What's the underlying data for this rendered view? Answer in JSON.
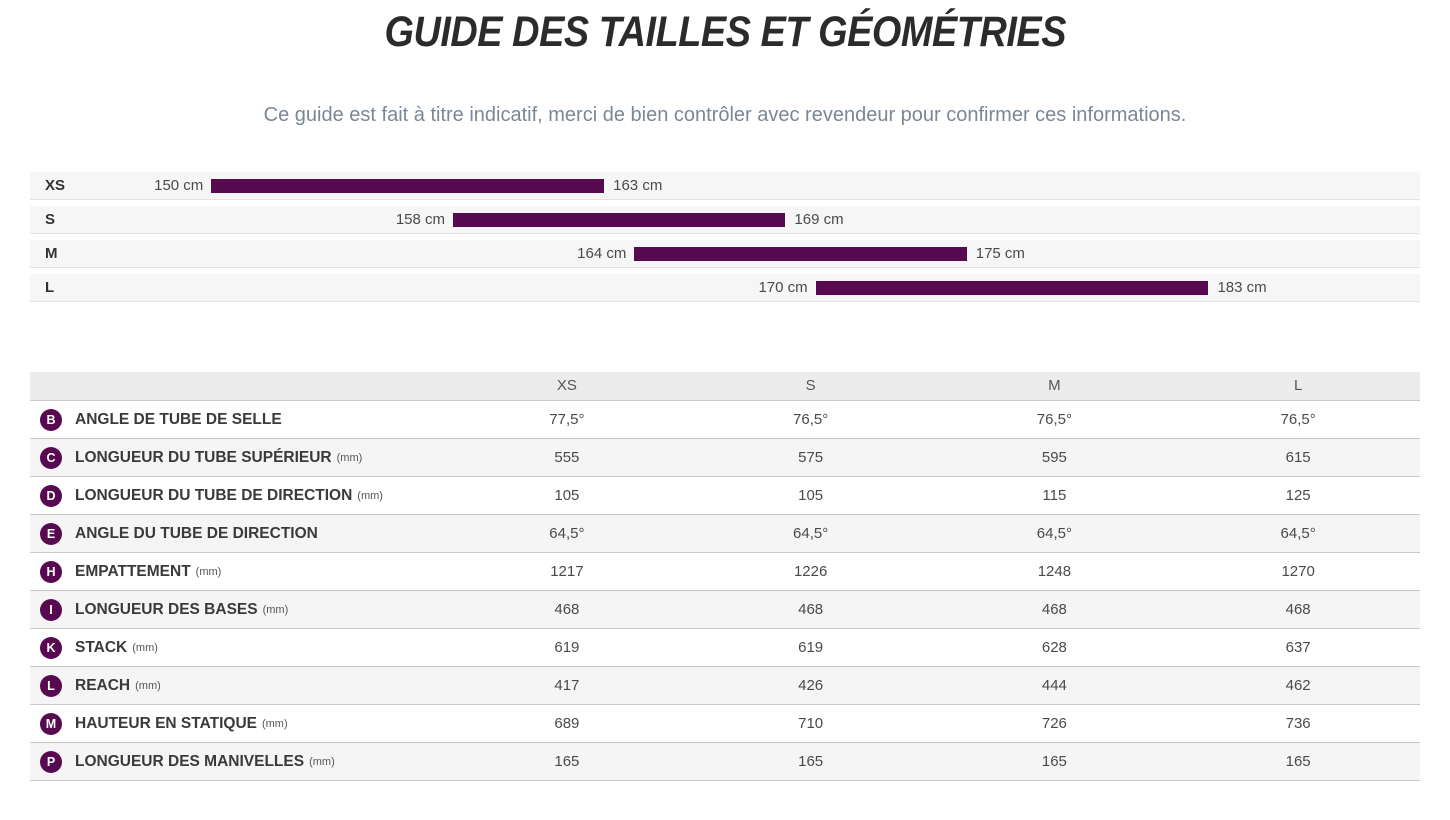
{
  "page": {
    "title": "GUIDE DES TAILLES ET GÉOMÉTRIES",
    "subtitle": "Ce guide est fait à titre indicatif, merci de bien contrôler avec revendeur pour confirmer ces informations."
  },
  "colors": {
    "accent_purple": "#570A50",
    "band_bg": "#F6F6F6",
    "table_header_bg": "#ECECEC",
    "row_alt_bg": "#F5F5F5",
    "row_border": "#C9C9C9",
    "title_text": "#2B2B2B",
    "subtitle_text": "#7B8794",
    "label_text": "#3A3A3A",
    "value_text": "#4A4A4A"
  },
  "chart_data": [
    {
      "type": "bar",
      "subtype": "horizontal-range",
      "categories": [
        "XS",
        "S",
        "M",
        "L"
      ],
      "series": [
        {
          "name": "rider-height-range-cm",
          "values": [
            [
              150,
              163
            ],
            [
              158,
              169
            ],
            [
              164,
              175
            ],
            [
              170,
              183
            ]
          ]
        }
      ],
      "value_labels": [
        [
          "150 cm",
          "163 cm"
        ],
        [
          "158 cm",
          "169 cm"
        ],
        [
          "164 cm",
          "175 cm"
        ],
        [
          "170 cm",
          "183 cm"
        ]
      ],
      "unit": "cm",
      "xlim": [
        144,
        190
      ],
      "bar_color": "#570A50",
      "grid": false,
      "legend": false
    },
    {
      "type": "table",
      "columns": [
        "",
        "XS",
        "S",
        "M",
        "L"
      ],
      "rows": [
        {
          "badge": "B",
          "label": "ANGLE DE TUBE DE SELLE",
          "unit": "",
          "values": [
            "77,5°",
            "76,5°",
            "76,5°",
            "76,5°"
          ]
        },
        {
          "badge": "C",
          "label": "LONGUEUR DU TUBE SUPÉRIEUR",
          "unit": "(mm)",
          "values": [
            "555",
            "575",
            "595",
            "615"
          ]
        },
        {
          "badge": "D",
          "label": "LONGUEUR DU TUBE DE DIRECTION",
          "unit": "(mm)",
          "values": [
            "105",
            "105",
            "115",
            "125"
          ]
        },
        {
          "badge": "E",
          "label": "ANGLE DU TUBE DE DIRECTION",
          "unit": "",
          "values": [
            "64,5°",
            "64,5°",
            "64,5°",
            "64,5°"
          ]
        },
        {
          "badge": "H",
          "label": "EMPATTEMENT",
          "unit": "(mm)",
          "values": [
            "1217",
            "1226",
            "1248",
            "1270"
          ]
        },
        {
          "badge": "I",
          "label": "LONGUEUR DES BASES",
          "unit": "(mm)",
          "values": [
            "468",
            "468",
            "468",
            "468"
          ]
        },
        {
          "badge": "K",
          "label": "STACK",
          "unit": "(mm)",
          "values": [
            "619",
            "619",
            "628",
            "637"
          ]
        },
        {
          "badge": "L",
          "label": "REACH",
          "unit": "(mm)",
          "values": [
            "417",
            "426",
            "444",
            "462"
          ]
        },
        {
          "badge": "M",
          "label": "HAUTEUR EN STATIQUE",
          "unit": "(mm)",
          "values": [
            "689",
            "710",
            "726",
            "736"
          ]
        },
        {
          "badge": "P",
          "label": "LONGUEUR DES MANIVELLES",
          "unit": "(mm)",
          "values": [
            "165",
            "165",
            "165",
            "165"
          ]
        }
      ]
    }
  ]
}
